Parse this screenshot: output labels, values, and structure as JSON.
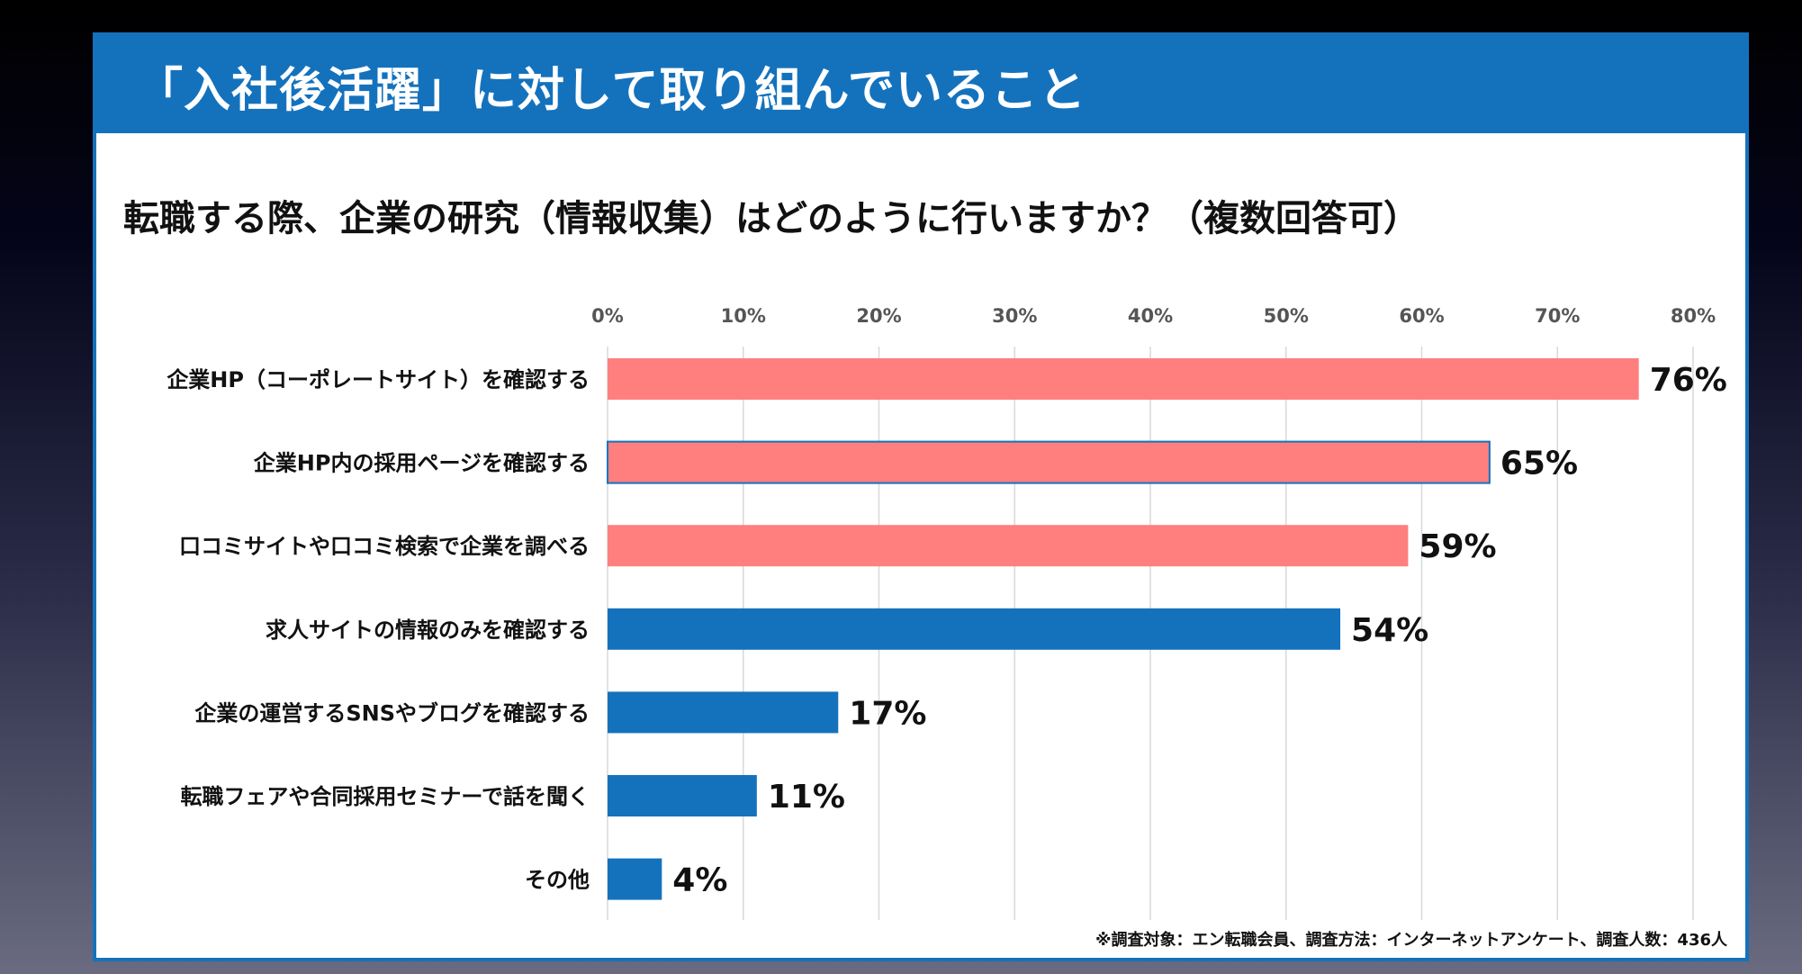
{
  "header": {
    "title": "「入社後活躍」に対して取り組んでいること"
  },
  "question": "転職する際、企業の研究（情報収集）はどのように行いますか？（複数回答可）",
  "footnote": "※調査対象：エン転職会員、調査方法：インターネットアンケート、調査人数：436人",
  "colors": {
    "header": "#1472bd",
    "highlight_bar": "#ff7f7f",
    "bar": "#1472bd",
    "grid": "#d9d9d9"
  },
  "chart_data": {
    "type": "bar",
    "orientation": "horizontal",
    "title": "転職する際、企業の研究（情報収集）はどのように行いますか？（複数回答可）",
    "xlabel": "",
    "ylabel": "",
    "xlim": [
      0,
      80
    ],
    "ticks": [
      "0%",
      "10%",
      "20%",
      "30%",
      "40%",
      "50%",
      "60%",
      "70%",
      "80%"
    ],
    "tick_values": [
      0,
      10,
      20,
      30,
      40,
      50,
      60,
      70,
      80
    ],
    "grid": true,
    "categories": [
      "企業HP（コーポレートサイト）を確認する",
      "企業HP内の採用ページを確認する",
      "口コミサイトや口コミ検索で企業を調べる",
      "求人サイトの情報のみを確認する",
      "企業の運営するSNSやブログを確認する",
      "転職フェアや合同採用セミナーで話を聞く",
      "その他"
    ],
    "values": [
      76,
      65,
      59,
      54,
      17,
      11,
      4
    ],
    "labels": [
      "76%",
      "65%",
      "59%",
      "54%",
      "17%",
      "11%",
      "4%"
    ],
    "highlighted": [
      true,
      true,
      true,
      false,
      false,
      false,
      false
    ]
  }
}
